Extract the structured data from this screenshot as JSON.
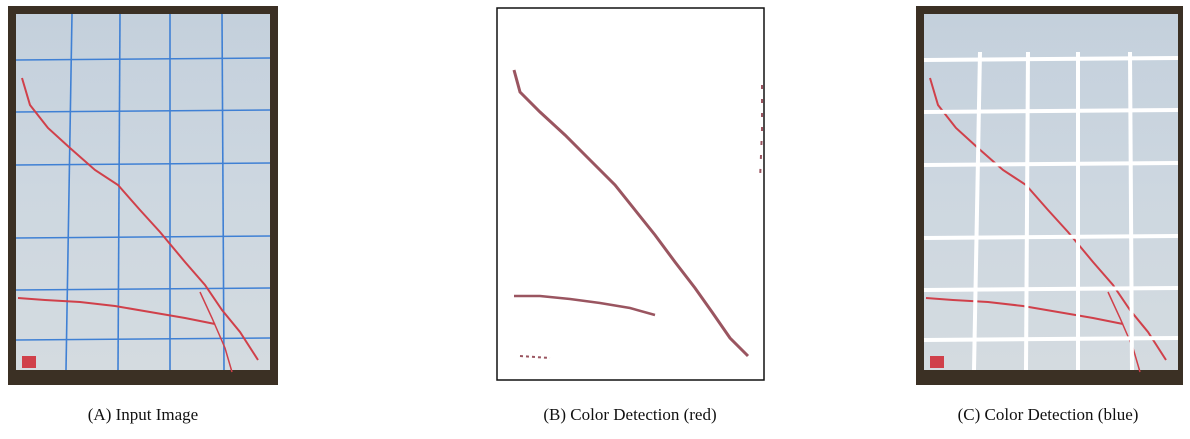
{
  "panels": [
    {
      "caption": "(A) Input Image"
    },
    {
      "caption": "(B) Color Detection (red)"
    },
    {
      "caption": "(C) Color Detection (blue)"
    }
  ]
}
